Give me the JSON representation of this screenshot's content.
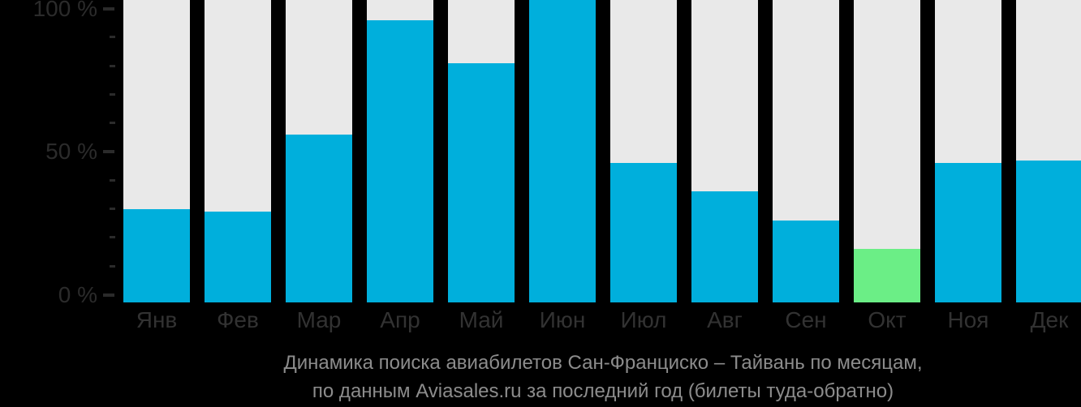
{
  "chart_data": {
    "type": "bar",
    "categories": [
      "Янв",
      "Фев",
      "Мар",
      "Апр",
      "Май",
      "Июн",
      "Июл",
      "Авг",
      "Сен",
      "Окт",
      "Ноя",
      "Дек"
    ],
    "values": [
      30,
      29,
      56,
      96,
      81,
      100,
      46,
      36,
      26,
      16,
      46,
      47
    ],
    "highlight_index": 9,
    "highlight_category": "Окт",
    "title": "Динамика поиска авиабилетов Сан-Франциско – Тайвань по месяцам,",
    "subtitle": "по данным Aviasales.ru за последний год (билеты туда-обратно)",
    "xlabel": "",
    "ylabel": "",
    "ylim": [
      0,
      100
    ],
    "y_ticks_major": [
      {
        "value": 100,
        "label": "100 %"
      },
      {
        "value": 50,
        "label": "50 %"
      },
      {
        "value": 0,
        "label": "0 %"
      }
    ],
    "y_tick_minor_step": 10,
    "grid": false,
    "legend_position": "none"
  },
  "colors": {
    "background": "#000000",
    "bar": "#00afdc",
    "bar_highlight": "#6bee86",
    "bar_track": "#e9e9e9",
    "axis_text": "#2b2b2b",
    "month_text": "#323232",
    "caption_text": "#8c8c8c"
  }
}
